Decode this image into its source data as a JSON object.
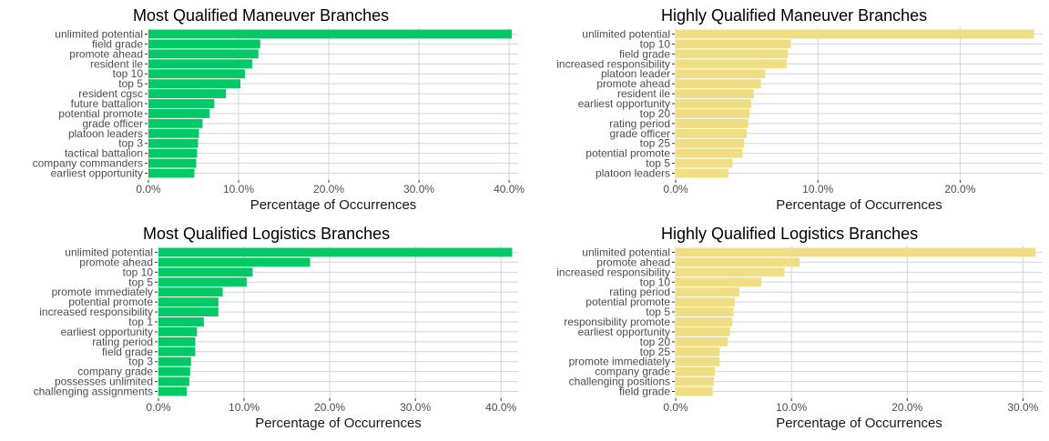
{
  "chart_data": [
    {
      "type": "bar",
      "orientation": "horizontal",
      "title": "Most Qualified Maneuver Branches",
      "xlabel": "Percentage of Occurrences",
      "ylabel": "",
      "color": "#00c966",
      "xlim": [
        0,
        41
      ],
      "xticks": [
        0,
        10,
        20,
        30,
        40
      ],
      "xtick_labels": [
        "0.0%",
        "10.0%",
        "20.0%",
        "30.0%",
        "40.0%"
      ],
      "grid": true,
      "categories": [
        "unlimited potential",
        "field grade",
        "promote ahead",
        "resident ile",
        "top 10",
        "top 5",
        "resident cgsc",
        "future battalion",
        "potential promote",
        "grade officer",
        "platoon leaders",
        "top 3",
        "tactical battalion",
        "company commanders",
        "earliest opportunity"
      ],
      "values": [
        40.3,
        12.4,
        12.2,
        11.5,
        10.7,
        10.2,
        8.6,
        7.3,
        6.8,
        6.0,
        5.6,
        5.5,
        5.4,
        5.3,
        5.1
      ]
    },
    {
      "type": "bar",
      "orientation": "horizontal",
      "title": "Highly Qualified Maneuver Branches",
      "xlabel": "Percentage of Occurrences",
      "ylabel": "",
      "color": "#f0de84",
      "xlim": [
        0,
        25.8
      ],
      "xticks": [
        0,
        10,
        20
      ],
      "xtick_labels": [
        "0.0%",
        "10.0%",
        "20.0%"
      ],
      "grid": true,
      "categories": [
        "unlimited potential",
        "top 10",
        "field grade",
        "increased responsibility",
        "platoon leader",
        "promote ahead",
        "resident ile",
        "earliest opportunity",
        "top 20",
        "rating period",
        "grade officer",
        "top 25",
        "potential promote",
        "top 5",
        "platoon leaders"
      ],
      "values": [
        25.2,
        8.1,
        7.9,
        7.8,
        6.3,
        6.0,
        5.5,
        5.3,
        5.2,
        5.1,
        5.0,
        4.8,
        4.7,
        4.0,
        3.7
      ]
    },
    {
      "type": "bar",
      "orientation": "horizontal",
      "title": "Most Qualified Logistics Branches",
      "xlabel": "Percentage of Occurrences",
      "ylabel": "",
      "color": "#00c966",
      "xlim": [
        0,
        42
      ],
      "xticks": [
        0,
        10,
        20,
        30,
        40
      ],
      "xtick_labels": [
        "0.0%",
        "10.0%",
        "20.0%",
        "30.0%",
        "40.0%"
      ],
      "grid": true,
      "categories": [
        "unlimited potential",
        "promote ahead",
        "top 10",
        "top 5",
        "promote immediately",
        "potential promote",
        "increased responsibility",
        "top 1",
        "earliest opportunity",
        "rating period",
        "field grade",
        "top 3",
        "company grade",
        "possesses unlimited",
        "challenging assignments"
      ],
      "values": [
        41.3,
        17.7,
        11.0,
        10.3,
        7.5,
        7.0,
        7.0,
        5.3,
        4.5,
        4.3,
        4.3,
        3.8,
        3.7,
        3.6,
        3.3
      ]
    },
    {
      "type": "bar",
      "orientation": "horizontal",
      "title": "Highly Qualified Logistics Branches",
      "xlabel": "Percentage of Occurrences",
      "ylabel": "",
      "color": "#f0de84",
      "xlim": [
        0,
        31.7
      ],
      "xticks": [
        0,
        10,
        20,
        30
      ],
      "xtick_labels": [
        "0.0%",
        "10.0%",
        "20.0%",
        "30.0%"
      ],
      "grid": true,
      "categories": [
        "unlimited potential",
        "promote ahead",
        "increased responsibility",
        "top 10",
        "rating period",
        "potential promote",
        "top 5",
        "responsibility promote",
        "earliest opportunity",
        "top 20",
        "top 25",
        "promote immediately",
        "company grade",
        "challenging positions",
        "field grade"
      ],
      "values": [
        31.1,
        10.7,
        9.4,
        7.4,
        5.5,
        5.1,
        5.0,
        4.9,
        4.7,
        4.5,
        3.8,
        3.8,
        3.4,
        3.3,
        3.2
      ]
    }
  ]
}
